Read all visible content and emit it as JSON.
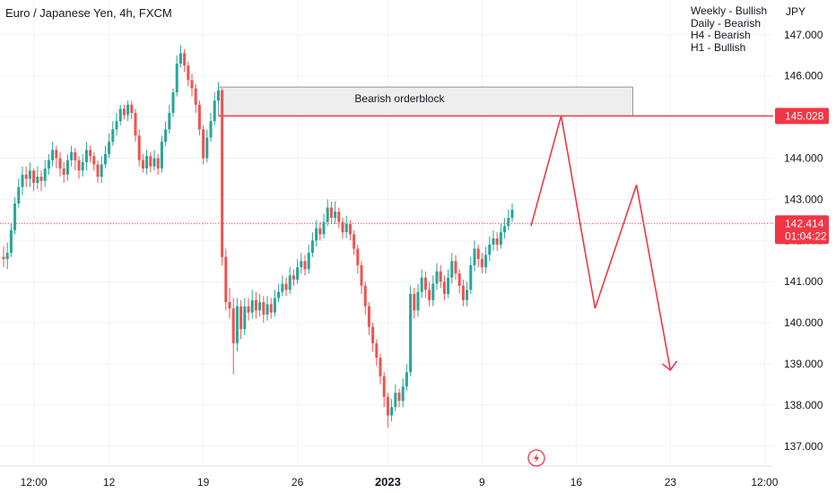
{
  "header": {
    "symbol_title": "Euro / Japanese Yen, 4h, FXCM",
    "currency": "JPY",
    "bias": [
      "Weekly - Bullish",
      "Daily - Bearish",
      "H4 - Bearish",
      "H1 - Bullish"
    ]
  },
  "colors": {
    "up": "#26a69a",
    "down": "#ef5350",
    "drawing": "#f23645",
    "grid": "#f0f3fa",
    "orderblock_fill": "#eeeeee",
    "orderblock_border": "#787b86"
  },
  "icons": {
    "snapshot": "lightning-icon"
  },
  "chart_data": {
    "type": "candlestick",
    "y_axis": {
      "range": [
        136.67,
        147.75
      ],
      "ticks": [
        "147.000",
        "146.000",
        "145.000",
        "144.000",
        "143.000",
        "142.000",
        "141.000",
        "140.000",
        "139.000",
        "138.000",
        "137.000"
      ],
      "tick_values": [
        147,
        146,
        145,
        144,
        143,
        142,
        141,
        140,
        139,
        138,
        137
      ]
    },
    "x_axis": {
      "labels": [
        "12:00",
        "12",
        "19",
        "26",
        "2023",
        "9",
        "16",
        "23",
        "12:00"
      ],
      "label_index": [
        8,
        28,
        53,
        78,
        102,
        127,
        152,
        177,
        202
      ],
      "bold": [
        "2023"
      ]
    },
    "grid": true,
    "current_price": {
      "value": "142.414",
      "countdown": "01:04:22"
    },
    "level": {
      "value": "145.028"
    },
    "orderblock": {
      "label": "Bearish orderblock",
      "top": 145.73,
      "bottom": 145.03,
      "start_index": 57,
      "end_index": 167
    },
    "projection": [
      {
        "i": 140,
        "p": 142.35
      },
      {
        "i": 148,
        "p": 145.03
      },
      {
        "i": 157,
        "p": 140.35
      },
      {
        "i": 168,
        "p": 143.35
      },
      {
        "i": 177,
        "p": 138.85
      }
    ],
    "projection_arrow_tip": {
      "i": 177,
      "p": 138.85
    },
    "candles": [
      [
        141.6,
        141.55,
        141.85,
        141.35
      ],
      [
        141.55,
        141.7,
        141.95,
        141.3
      ],
      [
        141.7,
        142.25,
        142.4,
        141.6
      ],
      [
        142.25,
        142.9,
        143.05,
        142.15
      ],
      [
        142.9,
        143.3,
        143.5,
        142.8
      ],
      [
        143.3,
        143.6,
        143.8,
        143.1
      ],
      [
        143.6,
        143.5,
        143.8,
        143.3
      ],
      [
        143.5,
        143.7,
        143.9,
        143.3
      ],
      [
        143.7,
        143.4,
        143.75,
        143.2
      ],
      [
        143.4,
        143.55,
        143.8,
        143.25
      ],
      [
        143.55,
        143.45,
        143.7,
        143.2
      ],
      [
        143.45,
        143.75,
        143.95,
        143.3
      ],
      [
        143.75,
        143.95,
        144.1,
        143.6
      ],
      [
        143.95,
        144.2,
        144.4,
        143.8
      ],
      [
        144.2,
        144.0,
        144.3,
        143.75
      ],
      [
        144.0,
        143.75,
        144.15,
        143.55
      ],
      [
        143.75,
        143.6,
        143.9,
        143.4
      ],
      [
        143.6,
        143.95,
        144.1,
        143.45
      ],
      [
        143.95,
        144.15,
        144.3,
        143.8
      ],
      [
        144.15,
        143.95,
        144.25,
        143.7
      ],
      [
        143.95,
        143.7,
        144.05,
        143.5
      ],
      [
        143.7,
        143.9,
        144.1,
        143.55
      ],
      [
        143.9,
        144.2,
        144.4,
        143.7
      ],
      [
        144.2,
        144.05,
        144.3,
        143.9
      ],
      [
        144.05,
        143.85,
        144.15,
        143.7
      ],
      [
        143.85,
        143.55,
        143.95,
        143.4
      ],
      [
        143.55,
        143.85,
        144.05,
        143.4
      ],
      [
        143.85,
        144.1,
        144.3,
        143.75
      ],
      [
        144.1,
        144.4,
        144.6,
        144.0
      ],
      [
        144.4,
        144.7,
        144.9,
        144.3
      ],
      [
        144.7,
        144.9,
        145.1,
        144.55
      ],
      [
        144.9,
        145.2,
        145.3,
        144.8
      ],
      [
        145.2,
        145.05,
        145.3,
        144.95
      ],
      [
        145.05,
        145.3,
        145.4,
        144.9
      ],
      [
        145.3,
        145.1,
        145.4,
        144.95
      ],
      [
        145.1,
        144.55,
        145.2,
        144.4
      ],
      [
        144.55,
        143.95,
        144.7,
        143.8
      ],
      [
        143.95,
        143.75,
        144.1,
        143.65
      ],
      [
        143.75,
        144.05,
        144.2,
        143.6
      ],
      [
        144.05,
        143.8,
        144.15,
        143.65
      ],
      [
        143.8,
        144.0,
        144.2,
        143.7
      ],
      [
        144.0,
        143.75,
        144.1,
        143.6
      ],
      [
        143.75,
        144.4,
        144.55,
        143.65
      ],
      [
        144.4,
        144.7,
        144.9,
        144.3
      ],
      [
        144.7,
        145.1,
        145.3,
        144.6
      ],
      [
        145.1,
        145.6,
        145.7,
        145.0
      ],
      [
        145.6,
        146.3,
        146.5,
        145.5
      ],
      [
        146.3,
        146.55,
        146.75,
        146.2
      ],
      [
        146.55,
        146.25,
        146.65,
        146.1
      ],
      [
        146.25,
        145.9,
        146.35,
        145.75
      ],
      [
        145.9,
        145.7,
        146.05,
        145.5
      ],
      [
        145.7,
        145.3,
        145.8,
        145.1
      ],
      [
        145.3,
        144.7,
        145.4,
        144.55
      ],
      [
        144.7,
        144.0,
        144.8,
        143.85
      ],
      [
        144.0,
        144.5,
        144.7,
        143.9
      ],
      [
        144.5,
        144.9,
        145.1,
        144.4
      ],
      [
        144.9,
        145.4,
        145.6,
        144.8
      ],
      [
        145.4,
        145.65,
        145.85,
        145.3
      ],
      [
        145.65,
        141.6,
        145.7,
        141.4
      ],
      [
        141.6,
        140.5,
        141.8,
        140.3
      ],
      [
        140.5,
        140.35,
        140.85,
        140.1
      ],
      [
        140.35,
        139.5,
        140.6,
        138.75
      ],
      [
        139.5,
        140.4,
        140.6,
        139.3
      ],
      [
        140.4,
        139.85,
        140.55,
        139.6
      ],
      [
        139.85,
        140.4,
        140.6,
        139.7
      ],
      [
        140.4,
        140.25,
        140.6,
        140.05
      ],
      [
        140.25,
        140.55,
        140.8,
        140.1
      ],
      [
        140.55,
        140.3,
        140.75,
        140.1
      ],
      [
        140.3,
        140.5,
        140.7,
        140.15
      ],
      [
        140.5,
        140.2,
        140.65,
        140.0
      ],
      [
        140.2,
        140.45,
        140.65,
        140.05
      ],
      [
        140.45,
        140.25,
        140.6,
        140.1
      ],
      [
        140.25,
        140.6,
        140.8,
        140.15
      ],
      [
        140.6,
        140.75,
        140.95,
        140.5
      ],
      [
        140.75,
        140.95,
        141.15,
        140.65
      ],
      [
        140.95,
        140.8,
        141.1,
        140.65
      ],
      [
        140.8,
        141.15,
        141.35,
        140.7
      ],
      [
        141.15,
        141.05,
        141.3,
        140.9
      ],
      [
        141.05,
        141.35,
        141.55,
        140.95
      ],
      [
        141.35,
        141.5,
        141.7,
        141.2
      ],
      [
        141.5,
        141.3,
        141.65,
        141.15
      ],
      [
        141.3,
        141.7,
        141.9,
        141.2
      ],
      [
        141.7,
        142.0,
        142.2,
        141.6
      ],
      [
        142.0,
        142.3,
        142.5,
        141.85
      ],
      [
        142.3,
        142.15,
        142.45,
        142.0
      ],
      [
        142.15,
        142.45,
        142.65,
        142.05
      ],
      [
        142.45,
        142.8,
        143.0,
        142.35
      ],
      [
        142.8,
        142.55,
        142.95,
        142.4
      ],
      [
        142.55,
        142.7,
        142.95,
        142.4
      ],
      [
        142.7,
        142.45,
        142.8,
        142.3
      ],
      [
        142.45,
        142.2,
        142.55,
        142.05
      ],
      [
        142.2,
        142.4,
        142.6,
        142.05
      ],
      [
        142.4,
        142.15,
        142.5,
        142.0
      ],
      [
        142.15,
        141.8,
        142.25,
        141.65
      ],
      [
        141.8,
        141.4,
        141.9,
        141.2
      ],
      [
        141.4,
        140.9,
        141.5,
        140.7
      ],
      [
        140.9,
        140.4,
        141.0,
        140.2
      ],
      [
        140.4,
        139.9,
        140.5,
        139.7
      ],
      [
        139.9,
        139.5,
        140.0,
        139.3
      ],
      [
        139.5,
        139.15,
        139.6,
        138.95
      ],
      [
        139.15,
        138.7,
        139.25,
        138.5
      ],
      [
        138.7,
        138.2,
        138.8,
        137.95
      ],
      [
        138.2,
        137.75,
        138.3,
        137.45
      ],
      [
        137.75,
        137.95,
        138.15,
        137.6
      ],
      [
        137.95,
        138.3,
        138.5,
        137.85
      ],
      [
        138.3,
        138.1,
        138.4,
        137.95
      ],
      [
        138.1,
        138.45,
        138.65,
        137.95
      ],
      [
        138.45,
        138.8,
        139.0,
        138.35
      ],
      [
        138.8,
        140.7,
        140.9,
        138.7
      ],
      [
        140.7,
        140.3,
        140.85,
        140.1
      ],
      [
        140.3,
        140.75,
        140.95,
        140.15
      ],
      [
        140.75,
        141.1,
        141.3,
        140.6
      ],
      [
        141.1,
        140.8,
        141.25,
        140.6
      ],
      [
        140.8,
        140.55,
        141.0,
        140.4
      ],
      [
        140.55,
        140.95,
        141.15,
        140.4
      ],
      [
        140.95,
        141.25,
        141.45,
        140.8
      ],
      [
        141.25,
        141.0,
        141.4,
        140.85
      ],
      [
        141.0,
        140.7,
        141.15,
        140.55
      ],
      [
        140.7,
        141.1,
        141.3,
        140.6
      ],
      [
        141.1,
        141.5,
        141.7,
        140.95
      ],
      [
        141.5,
        141.2,
        141.65,
        141.05
      ],
      [
        141.2,
        140.9,
        141.3,
        140.7
      ],
      [
        140.9,
        140.55,
        141.05,
        140.4
      ],
      [
        140.55,
        140.8,
        141.0,
        140.4
      ],
      [
        140.8,
        141.4,
        141.6,
        140.7
      ],
      [
        141.4,
        141.8,
        142.0,
        141.25
      ],
      [
        141.8,
        141.55,
        141.9,
        141.35
      ],
      [
        141.55,
        141.35,
        141.7,
        141.2
      ],
      [
        141.35,
        141.65,
        141.85,
        141.2
      ],
      [
        141.65,
        141.9,
        142.1,
        141.5
      ],
      [
        141.9,
        142.05,
        142.25,
        141.75
      ],
      [
        142.05,
        141.9,
        142.2,
        141.75
      ],
      [
        141.9,
        142.2,
        142.4,
        141.8
      ],
      [
        142.2,
        142.35,
        142.55,
        142.05
      ],
      [
        142.35,
        142.55,
        142.75,
        142.25
      ],
      [
        142.55,
        142.75,
        142.9,
        142.45
      ]
    ]
  }
}
